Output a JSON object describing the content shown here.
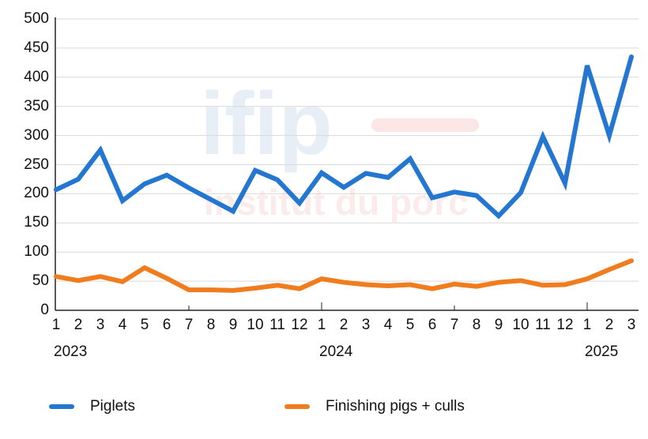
{
  "chart_data": {
    "type": "line",
    "title": "",
    "xlabel": "",
    "ylabel": "",
    "ylim": [
      0,
      500
    ],
    "yticks": [
      0,
      50,
      100,
      150,
      200,
      250,
      300,
      350,
      400,
      450,
      500
    ],
    "grid": true,
    "legend_position": "bottom",
    "years": [
      {
        "label": "2023",
        "start_index": 0
      },
      {
        "label": "2024",
        "start_index": 12
      },
      {
        "label": "2025",
        "start_index": 24
      }
    ],
    "categories": [
      "1",
      "2",
      "3",
      "4",
      "5",
      "6",
      "7",
      "8",
      "9",
      "10",
      "11",
      "12",
      "1",
      "2",
      "3",
      "4",
      "5",
      "6",
      "7",
      "8",
      "9",
      "10",
      "11",
      "12",
      "1",
      "2",
      "3"
    ],
    "series": [
      {
        "name": "Piglets",
        "color": "#2477d1",
        "values": [
          207,
          225,
          275,
          188,
          217,
          232,
          210,
          190,
          170,
          240,
          224,
          184,
          236,
          211,
          235,
          228,
          260,
          193,
          203,
          197,
          162,
          202,
          298,
          218,
          420,
          300,
          435
        ]
      },
      {
        "name": "Finishing pigs + culls",
        "color": "#f07c1e",
        "values": [
          58,
          51,
          58,
          49,
          73,
          55,
          35,
          35,
          34,
          38,
          43,
          37,
          54,
          48,
          44,
          42,
          44,
          37,
          45,
          41,
          48,
          51,
          43,
          44,
          54,
          70,
          85
        ]
      }
    ]
  },
  "watermark": {
    "logo": "ifip",
    "subtitle": "institut du porc"
  },
  "legend": {
    "items": [
      {
        "label": "Piglets",
        "color": "#2477d1"
      },
      {
        "label": "Finishing pigs + culls",
        "color": "#f07c1e"
      }
    ]
  },
  "colors": {
    "grid": "#d9d9d9",
    "axis": "#222222"
  }
}
